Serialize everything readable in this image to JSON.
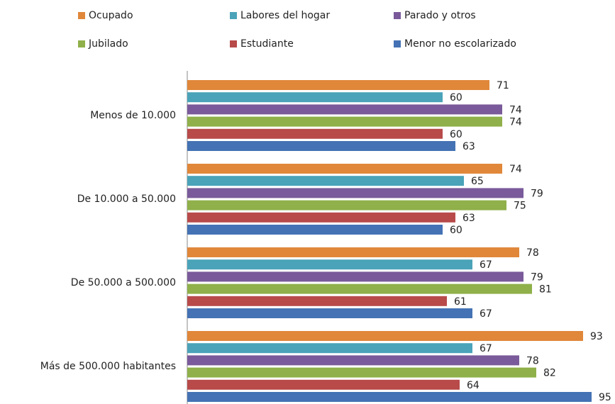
{
  "chart_data": {
    "type": "barh",
    "categories": [
      "Menos de 10.000",
      "De 10.000 a 50.000",
      "De 50.000 a 500.000",
      "Más de 500.000 habitantes"
    ],
    "series": [
      {
        "name": "Ocupado",
        "color": "#e0873a",
        "values": [
          71,
          74,
          78,
          93
        ]
      },
      {
        "name": "Labores del hogar",
        "color": "#4aa3b8",
        "values": [
          60,
          65,
          67,
          67
        ]
      },
      {
        "name": "Parado y otros",
        "color": "#7a5a9a",
        "values": [
          74,
          79,
          79,
          78
        ]
      },
      {
        "name": "Jubilado",
        "color": "#8fb04a",
        "values": [
          74,
          75,
          81,
          82
        ]
      },
      {
        "name": "Estudiante",
        "color": "#b84a4a",
        "values": [
          60,
          63,
          61,
          64
        ]
      },
      {
        "name": "Menor no escolarizado",
        "color": "#4472b4",
        "values": [
          63,
          60,
          67,
          95
        ]
      }
    ],
    "xlim": [
      0,
      100
    ]
  }
}
